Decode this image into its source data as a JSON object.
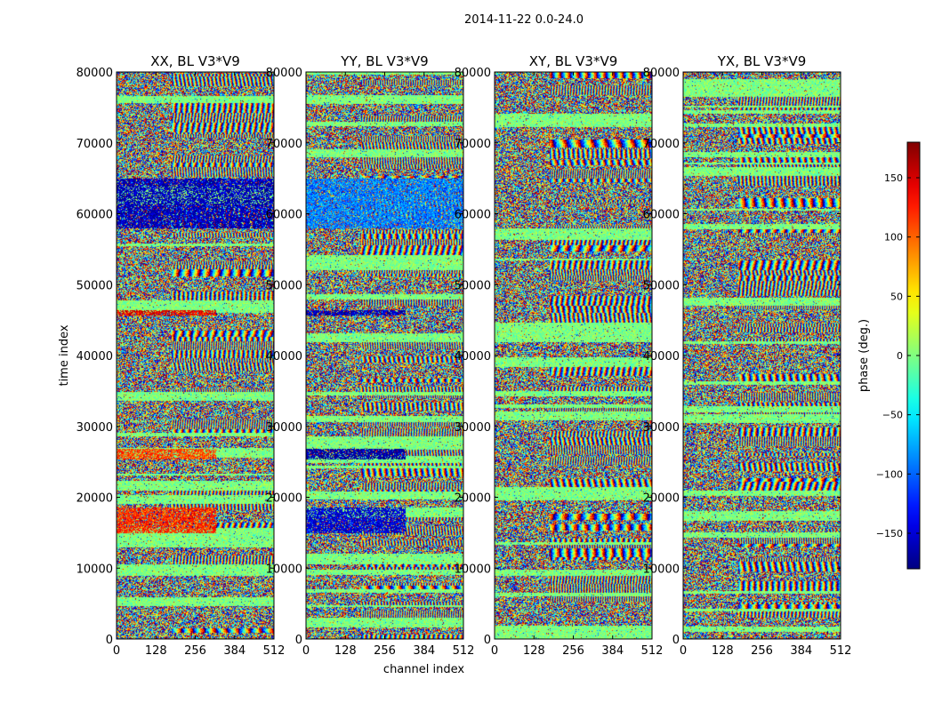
{
  "figure_title": "2014-11-22 0.0-24.0",
  "chart_data": [
    {
      "type": "heatmap",
      "title": "XX, BL V3*V9",
      "xlabel": "",
      "ylabel": "time index",
      "xlim": [
        0,
        512
      ],
      "ylim": [
        0,
        80000
      ],
      "xticks": [
        0,
        128,
        256,
        384,
        512
      ],
      "yticks": [
        0,
        10000,
        20000,
        30000,
        40000,
        50000,
        60000,
        70000,
        80000
      ],
      "value_range": [
        -180,
        180
      ],
      "features": [
        {
          "y0": 58000,
          "y1": 65000,
          "x0": 0,
          "x1": 512,
          "phase": -160
        },
        {
          "y0": 25500,
          "y1": 26800,
          "x0": 0,
          "x1": 320,
          "phase": 110
        },
        {
          "y0": 15000,
          "y1": 18500,
          "x0": 0,
          "x1": 320,
          "phase": 120
        },
        {
          "y0": 45800,
          "y1": 46400,
          "x0": 0,
          "x1": 320,
          "phase": 140
        }
      ]
    },
    {
      "type": "heatmap",
      "title": "YY, BL V3*V9",
      "xlabel": "channel index",
      "ylabel": "",
      "xlim": [
        0,
        512
      ],
      "ylim": [
        0,
        80000
      ],
      "xticks": [
        0,
        128,
        256,
        384,
        512
      ],
      "yticks": [
        0,
        10000,
        20000,
        30000,
        40000,
        50000,
        60000,
        70000,
        80000
      ],
      "value_range": [
        -180,
        180
      ],
      "features": [
        {
          "y0": 58000,
          "y1": 65000,
          "x0": 0,
          "x1": 512,
          "phase": -90
        },
        {
          "y0": 25500,
          "y1": 26800,
          "x0": 0,
          "x1": 320,
          "phase": -170
        },
        {
          "y0": 15000,
          "y1": 18500,
          "x0": 0,
          "x1": 320,
          "phase": -150
        },
        {
          "y0": 45800,
          "y1": 46400,
          "x0": 0,
          "x1": 320,
          "phase": -160
        }
      ]
    },
    {
      "type": "heatmap",
      "title": "XY, BL V3*V9",
      "xlabel": "",
      "ylabel": "",
      "xlim": [
        0,
        512
      ],
      "ylim": [
        0,
        80000
      ],
      "xticks": [
        0,
        128,
        256,
        384,
        512
      ],
      "yticks": [
        0,
        10000,
        20000,
        30000,
        40000,
        50000,
        60000,
        70000,
        80000
      ],
      "value_range": [
        -180,
        180
      ],
      "features": []
    },
    {
      "type": "heatmap",
      "title": "YX, BL V3*V9",
      "xlabel": "",
      "ylabel": "",
      "xlim": [
        0,
        512
      ],
      "ylim": [
        0,
        80000
      ],
      "xticks": [
        0,
        128,
        256,
        384,
        512
      ],
      "yticks": [
        0,
        10000,
        20000,
        30000,
        40000,
        50000,
        60000,
        70000,
        80000
      ],
      "value_range": [
        -180,
        180
      ],
      "features": []
    }
  ],
  "colorbar": {
    "label": "phase (deg.)",
    "range": [
      -180,
      180
    ],
    "ticks": [
      -150,
      -100,
      -50,
      0,
      50,
      100,
      150
    ],
    "tick_labels": [
      "−150",
      "−100",
      "−50",
      "0",
      "50",
      "100",
      "150"
    ],
    "colormap": "jet"
  }
}
